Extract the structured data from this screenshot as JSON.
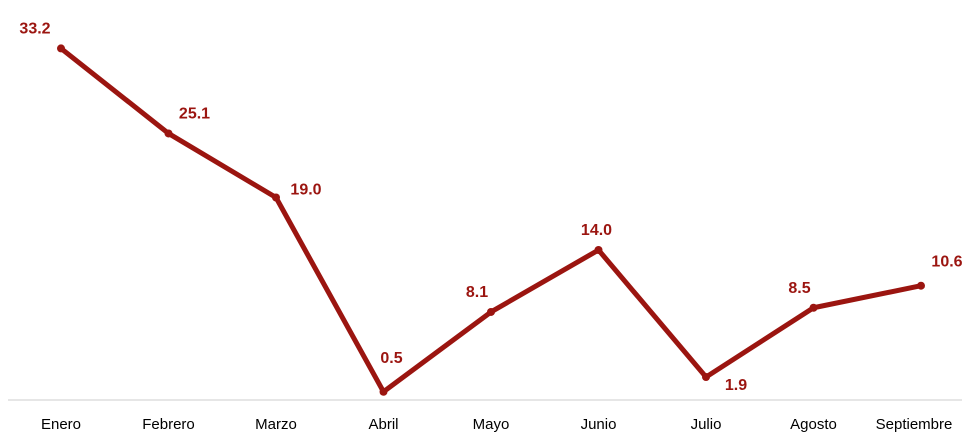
{
  "chart_data": {
    "type": "line",
    "categories": [
      "Enero",
      "Febrero",
      "Marzo",
      "Abril",
      "Mayo",
      "Junio",
      "Julio",
      "Agosto",
      "Septiembre"
    ],
    "series": [
      {
        "values": [
          33.2,
          25.1,
          19.0,
          0.5,
          8.1,
          14.0,
          1.9,
          8.5,
          10.6
        ]
      }
    ],
    "data_labels": [
      "33.2",
      "25.1",
      "19.0",
      "0.5",
      "8.1",
      "14.0",
      "1.9",
      "8.5",
      "10.6"
    ],
    "line_color": "#9b1510",
    "axis_color": "#cccccc",
    "grid": false,
    "legend": "none"
  }
}
